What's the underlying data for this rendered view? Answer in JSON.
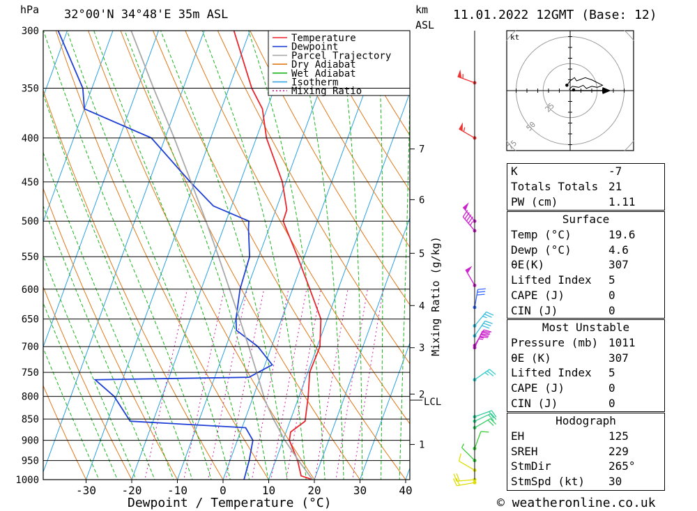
{
  "header": {
    "hpa_unit": "hPa",
    "location": "32°00'N  34°48'E  35m  ASL",
    "km_unit": "km",
    "asl_unit": "ASL",
    "datetime": "11.01.2022  12GMT  (Base: 12)"
  },
  "footer": {
    "credit": "© weatheronline.co.uk"
  },
  "mixing_ratio_label": "Mixing Ratio (g/kg)",
  "lcl_label": "LCL",
  "chart_data": {
    "type": "line",
    "title": "",
    "xlabel": "Dewpoint / Temperature (°C)",
    "ylabel": "hPa",
    "xlim": [
      -40,
      40
    ],
    "ylim": [
      1000,
      300
    ],
    "y_scale": "log",
    "x_ticks": [
      -30,
      -20,
      -10,
      0,
      10,
      20,
      30,
      40
    ],
    "pressure_levels": [
      300,
      350,
      400,
      450,
      500,
      550,
      600,
      650,
      700,
      750,
      800,
      850,
      900,
      950,
      1000
    ],
    "height_km_ticks": [
      {
        "label": "1",
        "p": 910
      },
      {
        "label": "2",
        "p": 795
      },
      {
        "label": "3",
        "p": 702
      },
      {
        "label": "4",
        "p": 627
      },
      {
        "label": "5",
        "p": 545
      },
      {
        "label": "6",
        "p": 472
      },
      {
        "label": "7",
        "p": 412
      }
    ],
    "lcl_pressure": 808,
    "mixing_ratio_labels": [
      "1",
      "2",
      "3",
      "4",
      "6",
      "8",
      "10",
      "15",
      "20",
      "25"
    ],
    "mixing_ratio_values": [
      1,
      2,
      3,
      4,
      6,
      8,
      10,
      15,
      20,
      25
    ],
    "legend": [
      {
        "name": "Temperature",
        "color": "#e8242c",
        "dash": "solid"
      },
      {
        "name": "Dewpoint",
        "color": "#1e3fd6",
        "dash": "solid"
      },
      {
        "name": "Parcel Trajectory",
        "color": "#a8a8a8",
        "dash": "solid"
      },
      {
        "name": "Dry Adiabat",
        "color": "#e07818",
        "dash": "solid"
      },
      {
        "name": "Wet Adiabat",
        "color": "#18b418",
        "dash": "solid"
      },
      {
        "name": "Isotherm",
        "color": "#28a0e0",
        "dash": "solid"
      },
      {
        "name": "Mixing Ratio",
        "color": "#d0189a",
        "dash": "dotted"
      }
    ],
    "legend_position": "top-right",
    "series": [
      {
        "name": "Temperature",
        "color": "#e8242c",
        "points": [
          [
            1010,
            20.5
          ],
          [
            1000,
            19.6
          ],
          [
            990,
            16.8
          ],
          [
            950,
            14.8
          ],
          [
            900,
            11.4
          ],
          [
            880,
            11.0
          ],
          [
            855,
            13.3
          ],
          [
            800,
            12.0
          ],
          [
            750,
            10.4
          ],
          [
            700,
            10.6
          ],
          [
            650,
            8.6
          ],
          [
            600,
            3.8
          ],
          [
            550,
            -1.5
          ],
          [
            500,
            -7.5
          ],
          [
            485,
            -7.6
          ],
          [
            450,
            -10.8
          ],
          [
            400,
            -17.8
          ],
          [
            370,
            -21.0
          ],
          [
            350,
            -25.0
          ],
          [
            300,
            -33.5
          ]
        ]
      },
      {
        "name": "Dewpoint",
        "color": "#1e3fd6",
        "points": [
          [
            1000,
            4.6
          ],
          [
            950,
            4.2
          ],
          [
            900,
            3.4
          ],
          [
            870,
            0.8
          ],
          [
            855,
            -25.0
          ],
          [
            800,
            -30.5
          ],
          [
            765,
            -36.0
          ],
          [
            760,
            -2.5
          ],
          [
            735,
            1.6
          ],
          [
            700,
            -3.0
          ],
          [
            670,
            -9.0
          ],
          [
            650,
            -10.0
          ],
          [
            600,
            -11.5
          ],
          [
            550,
            -12.0
          ],
          [
            510,
            -14.5
          ],
          [
            500,
            -15.0
          ],
          [
            480,
            -24.0
          ],
          [
            450,
            -31.0
          ],
          [
            400,
            -43.0
          ],
          [
            370,
            -60.0
          ],
          [
            350,
            -62.0
          ],
          [
            300,
            -72.0
          ]
        ]
      },
      {
        "name": "Parcel Trajectory",
        "color": "#a8a8a8",
        "points": [
          [
            1000,
            19.6
          ],
          [
            950,
            15.0
          ],
          [
            900,
            10.4
          ],
          [
            850,
            6.2
          ],
          [
            808,
            2.8
          ],
          [
            750,
            -1.2
          ],
          [
            700,
            -5.0
          ],
          [
            650,
            -9.2
          ],
          [
            600,
            -13.8
          ],
          [
            550,
            -18.8
          ],
          [
            500,
            -24.4
          ],
          [
            450,
            -30.8
          ],
          [
            400,
            -38.0
          ],
          [
            350,
            -46.5
          ],
          [
            300,
            -56.0
          ]
        ]
      }
    ],
    "wind_barbs": [
      {
        "p": 1008,
        "dir": 260,
        "kt": 20,
        "color": "#dddd00"
      },
      {
        "p": 1000,
        "dir": 265,
        "kt": 20,
        "color": "#dddd00"
      },
      {
        "p": 975,
        "dir": 300,
        "kt": 10,
        "color": "#dddd00"
      },
      {
        "p": 950,
        "dir": 315,
        "kt": 5,
        "color": "#33cc33"
      },
      {
        "p": 920,
        "dir": 20,
        "kt": 10,
        "color": "#33cc33"
      },
      {
        "p": 870,
        "dir": 60,
        "kt": 20,
        "color": "#33cc66"
      },
      {
        "p": 855,
        "dir": 65,
        "kt": 20,
        "color": "#33cc88"
      },
      {
        "p": 845,
        "dir": 70,
        "kt": 20,
        "color": "#33cc99"
      },
      {
        "p": 765,
        "dir": 55,
        "kt": 25,
        "color": "#33cccc"
      },
      {
        "p": 702,
        "dir": 25,
        "kt": 35,
        "color": "#cc22cc"
      },
      {
        "p": 698,
        "dir": 30,
        "kt": 35,
        "color": "#cc22cc"
      },
      {
        "p": 680,
        "dir": 35,
        "kt": 30,
        "color": "#33bbdd"
      },
      {
        "p": 662,
        "dir": 40,
        "kt": 25,
        "color": "#33bbdd"
      },
      {
        "p": 630,
        "dir": 10,
        "kt": 30,
        "color": "#3366ff"
      },
      {
        "p": 594,
        "dir": 330,
        "kt": 50,
        "color": "#cc22cc"
      },
      {
        "p": 513,
        "dir": 320,
        "kt": 45,
        "color": "#cc22cc"
      },
      {
        "p": 500,
        "dir": 320,
        "kt": 50,
        "color": "#cc22cc"
      },
      {
        "p": 400,
        "dir": 300,
        "kt": 55,
        "color": "#ee3333"
      },
      {
        "p": 345,
        "dir": 290,
        "kt": 55,
        "color": "#ee3333"
      }
    ],
    "hodograph": {
      "unit": "kt",
      "ring_labels": [
        "25",
        "50",
        "75"
      ],
      "ring_values": [
        25,
        50,
        75
      ],
      "hodo_points": [
        [
          -1,
          1
        ],
        [
          2,
          4
        ],
        [
          8,
          3
        ],
        [
          12,
          5
        ],
        [
          15,
          2
        ],
        [
          20,
          4
        ],
        [
          25,
          3
        ],
        [
          30,
          5
        ],
        [
          20,
          10
        ],
        [
          14,
          12
        ],
        [
          6,
          9
        ],
        [
          4,
          12
        ],
        [
          0,
          9
        ],
        [
          -3,
          5
        ]
      ],
      "storm_motion_kt": [
        30,
        0
      ]
    }
  },
  "indices": {
    "general": [
      {
        "key": "K",
        "value": "-7"
      },
      {
        "key": "Totals Totals",
        "value": "21"
      },
      {
        "key": "PW (cm)",
        "value": "1.11"
      }
    ],
    "surface_title": "Surface",
    "surface": [
      {
        "key": "Temp (°C)",
        "value": "19.6"
      },
      {
        "key": "Dewp (°C)",
        "value": "4.6"
      },
      {
        "key": "θE(K)",
        "value": "307"
      },
      {
        "key": "Lifted Index",
        "value": "5"
      },
      {
        "key": "CAPE (J)",
        "value": "0"
      },
      {
        "key": "CIN (J)",
        "value": "0"
      }
    ],
    "most_unstable_title": "Most Unstable",
    "most_unstable": [
      {
        "key": "Pressure (mb)",
        "value": "1011"
      },
      {
        "key": "θE (K)",
        "value": "307"
      },
      {
        "key": "Lifted Index",
        "value": "5"
      },
      {
        "key": "CAPE (J)",
        "value": "0"
      },
      {
        "key": "CIN (J)",
        "value": "0"
      }
    ],
    "hodograph_title": "Hodograph",
    "hodograph": [
      {
        "key": "EH",
        "value": "125"
      },
      {
        "key": "SREH",
        "value": "229"
      },
      {
        "key": "StmDir",
        "value": "265°"
      },
      {
        "key": "StmSpd (kt)",
        "value": "30"
      }
    ]
  }
}
